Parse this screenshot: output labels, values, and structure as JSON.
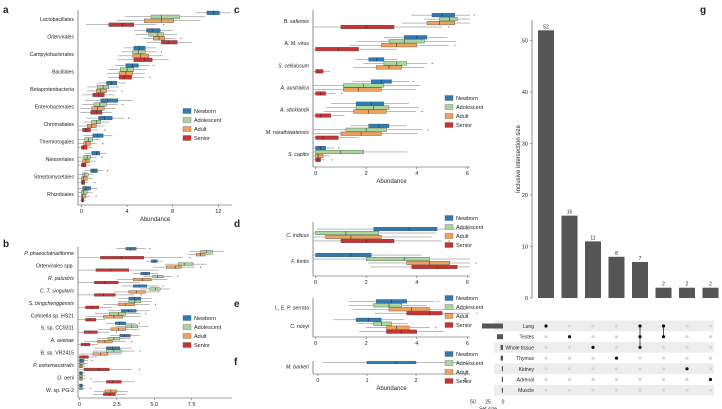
{
  "colors": {
    "Newborn": "#2e7ab3",
    "Adolescent": "#a9d69c",
    "Adult": "#eea25e",
    "Senior": "#c93333",
    "bar": "#555555",
    "dot_off": "#d6d6d6",
    "band": "#ededed"
  },
  "legend": [
    "Newborn",
    "Adolescent",
    "Adult",
    "Senior"
  ],
  "chart_data": [
    {
      "panel": "a",
      "type": "boxplot",
      "xlabel": "Abundance",
      "xlim": [
        -0.3,
        13.2
      ],
      "xticks": [
        0,
        4,
        8,
        12
      ],
      "categories": [
        {
          "name": "Lactobacillales",
          "italic": false,
          "boxes": [
            [
              11,
              11.6,
              12.1
            ],
            [
              6.1,
              7,
              8.6
            ],
            [
              5.5,
              7,
              8.1
            ],
            [
              2.4,
              3.6,
              4.6
            ]
          ]
        },
        {
          "name": "Ortervirales",
          "italic": true,
          "boxes": [
            [
              5.7,
              6.2,
              6.9
            ],
            [
              5.9,
              6.7,
              7.2
            ],
            [
              6.3,
              6.8,
              7.3
            ],
            [
              7,
              7.6,
              8.4
            ]
          ]
        },
        {
          "name": "Campylobacterales",
          "italic": false,
          "boxes": [
            [
              4.6,
              5.1,
              5.6
            ],
            [
              4.5,
              5,
              5.6
            ],
            [
              4.5,
              5.2,
              5.9
            ],
            [
              4.6,
              5.5,
              6.2
            ]
          ]
        },
        {
          "name": "Bacillales",
          "italic": false,
          "boxes": [
            [
              3.9,
              4.5,
              5
            ],
            [
              3.4,
              4,
              4.6
            ],
            [
              3.3,
              3.9,
              4.5
            ],
            [
              3.3,
              3.8,
              4.4
            ]
          ]
        },
        {
          "name": "Betaproteobacteria",
          "italic": false,
          "boxes": [
            [
              2.2,
              2.6,
              3.1
            ],
            [
              1.4,
              1.9,
              2.4
            ],
            [
              1.3,
              1.7,
              2.2
            ],
            [
              1,
              1.5,
              2
            ]
          ]
        },
        {
          "name": "Enterobacterales",
          "italic": false,
          "boxes": [
            [
              1.7,
              2.3,
              3.2
            ],
            [
              1.1,
              1.6,
              2.2
            ],
            [
              0.9,
              1.4,
              2
            ],
            [
              0.8,
              1.3,
              1.8
            ]
          ]
        },
        {
          "name": "Chromatiales",
          "italic": false,
          "boxes": [
            [
              1.5,
              2,
              2.7
            ],
            [
              0.9,
              1.3,
              1.7
            ],
            [
              0.5,
              0.9,
              1.3
            ],
            [
              0.1,
              0.4,
              0.8
            ]
          ]
        },
        {
          "name": "Thermotogales",
          "italic": false,
          "boxes": [
            [
              1,
              1.4,
              1.9
            ],
            [
              0.3,
              0.6,
              1
            ],
            [
              0.2,
              0.4,
              0.8
            ],
            [
              0,
              0.2,
              0.5
            ]
          ]
        },
        {
          "name": "Neisseriales",
          "italic": false,
          "boxes": [
            [
              0.9,
              1.3,
              1.6
            ],
            [
              0.2,
              0.5,
              0.8
            ],
            [
              0.1,
              0.4,
              0.7
            ],
            [
              0,
              0.2,
              0.4
            ]
          ]
        },
        {
          "name": "Streptomycetales",
          "italic": false,
          "boxes": [
            [
              0.8,
              1.1,
              1.4
            ],
            [
              0.1,
              0.3,
              0.6
            ],
            [
              0,
              0.2,
              0.5
            ],
            [
              0,
              0.1,
              0.3
            ]
          ]
        },
        {
          "name": "Rhizobiales",
          "italic": false,
          "boxes": [
            [
              0.1,
              0.4,
              0.8
            ],
            [
              0,
              0.2,
              0.5
            ],
            [
              0,
              0.1,
              0.4
            ],
            [
              0,
              0.1,
              0.2
            ]
          ]
        }
      ]
    },
    {
      "panel": "b",
      "type": "boxplot",
      "xlabel": "Abundance",
      "xlim": [
        -0.1,
        10.2
      ],
      "xticks": [
        0,
        2.5,
        5,
        7.5
      ],
      "xtick_labels": [
        "0",
        "2.5",
        "5.0",
        "7.5"
      ],
      "categories": [
        {
          "name": "P. phaeoclatriatiforme",
          "italic": true,
          "boxes": [
            [
              3.1,
              3.4,
              3.8
            ],
            [
              8.1,
              8.5,
              8.9
            ],
            [
              7.8,
              8.1,
              8.4
            ],
            [
              1.4,
              2.8,
              4.3
            ]
          ]
        },
        {
          "name": "Ortervirales spp.",
          "italic": false,
          "boxes": [
            [
              4.8,
              5,
              5.2
            ],
            [
              6.6,
              7,
              7.6
            ],
            [
              5.8,
              6.4,
              6.8
            ],
            [
              1.1,
              2.1,
              3.3
            ]
          ]
        },
        {
          "name": "R. palustris",
          "italic": true,
          "boxes": [
            [
              4.1,
              4.4,
              4.7
            ],
            [
              4.9,
              5.2,
              5.6
            ],
            [
              3.6,
              4.2,
              4.8
            ],
            [
              1,
              1.7,
              2.6
            ]
          ]
        },
        {
          "name": "C. T. singularis",
          "italic": true,
          "boxes": [
            [
              3.6,
              4,
              4.5
            ],
            [
              4.7,
              5.1,
              5.4
            ],
            [
              3.3,
              3.8,
              4.4
            ],
            [
              1,
              1.6,
              2.4
            ]
          ]
        },
        {
          "name": "S. bingchenggensis",
          "italic": true,
          "boxes": [
            [
              3.3,
              3.7,
              4.1
            ],
            [
              3.3,
              3.7,
              4.1
            ],
            [
              2.6,
              3.1,
              3.7
            ],
            [
              0.4,
              0.8,
              1.3
            ]
          ]
        },
        {
          "name": "Cohnella sp. HS21",
          "italic": false,
          "boxes": [
            [
              2.8,
              3.3,
              3.8
            ],
            [
              2,
              2.6,
              3.1
            ],
            [
              1.6,
              2.3,
              2.9
            ],
            [
              0.4,
              0.7,
              1.1
            ]
          ]
        },
        {
          "name": "S. sp. CC9311",
          "italic": false,
          "boxes": [
            [
              2.4,
              2.7,
              3.1
            ],
            [
              3.1,
              3.5,
              3.9
            ],
            [
              2.1,
              2.6,
              3.1
            ],
            [
              0.3,
              0.7,
              1.2
            ]
          ]
        },
        {
          "name": "A. avenae",
          "italic": true,
          "boxes": [
            [
              2.7,
              3,
              3.4
            ],
            [
              1.9,
              2.3,
              2.7
            ],
            [
              1.2,
              1.7,
              2.2
            ],
            [
              0.1,
              0.4,
              0.7
            ]
          ]
        },
        {
          "name": "B. sp. VR2415",
          "italic": false,
          "boxes": [
            [
              1.8,
              2.2,
              2.7
            ],
            [
              1.8,
              2.3,
              2.8
            ],
            [
              0.9,
              1.4,
              1.9
            ],
            [
              0,
              0.3,
              0.6
            ]
          ]
        },
        {
          "name": "P. extremaustralis",
          "italic": true,
          "boxes": [
            [
              0,
              0.1,
              0.3
            ],
            [
              0,
              0.1,
              0.3
            ],
            [
              0,
              0.1,
              0.2
            ],
            [
              0.3,
              1.3,
              2
            ]
          ]
        },
        {
          "name": "O. oeni",
          "italic": true,
          "boxes": [
            [
              0,
              0.1,
              0.2
            ],
            [
              0,
              0.1,
              0.2
            ],
            [
              0,
              0.1,
              0.2
            ],
            [
              1.8,
              2.2,
              2.8
            ]
          ]
        },
        {
          "name": "W. sp. PG-2",
          "italic": false,
          "boxes": [
            [
              0,
              0.1,
              0.2
            ],
            [
              0,
              0.1,
              0.2
            ],
            [
              1.7,
              2.1,
              2.5
            ],
            [
              1.6,
              2,
              2.4
            ]
          ]
        }
      ]
    },
    {
      "panel": "c",
      "type": "boxplot",
      "xlabel": "Abundance",
      "xlim": [
        -0.1,
        6.1
      ],
      "xticks": [
        0,
        2,
        4,
        6
      ],
      "categories": [
        {
          "name": "B. safensis",
          "italic": true,
          "boxes": [
            [
              4.6,
              5,
              5.5
            ],
            [
              4.9,
              5.3,
              5.6
            ],
            [
              4.4,
              4.9,
              5.5
            ],
            [
              1,
              2,
              3.1
            ]
          ]
        },
        {
          "name": "A. M. virus",
          "italic": false,
          "boxes": [
            [
              3.5,
              4,
              4.4
            ],
            [
              2.9,
              3.5,
              4.3
            ],
            [
              2.6,
              3.2,
              4
            ],
            [
              0,
              0.9,
              1.7
            ]
          ]
        },
        {
          "name": "S. cellulosum",
          "italic": true,
          "boxes": [
            [
              2.1,
              2.4,
              2.7
            ],
            [
              2.7,
              3.2,
              3.6
            ],
            [
              2.4,
              2.9,
              3.4
            ],
            [
              0,
              0.1,
              0.3
            ]
          ]
        },
        {
          "name": "A. australica",
          "italic": true,
          "boxes": [
            [
              2.2,
              2.6,
              3
            ],
            [
              1.1,
              1.9,
              2.7
            ],
            [
              1.1,
              1.7,
              2.6
            ],
            [
              0,
              0.2,
              0.4
            ]
          ]
        },
        {
          "name": "A. sticklandii",
          "italic": true,
          "boxes": [
            [
              1.6,
              2.2,
              2.7
            ],
            [
              1.6,
              2.3,
              2.9
            ],
            [
              1.5,
              2.1,
              2.8
            ],
            [
              0,
              0.2,
              0.6
            ]
          ]
        },
        {
          "name": "M. narathiwatensis",
          "italic": true,
          "boxes": [
            [
              2.1,
              2.5,
              2.9
            ],
            [
              1.2,
              2,
              2.8
            ],
            [
              1,
              1.8,
              2.6
            ],
            [
              0,
              0.3,
              0.9
            ]
          ]
        },
        {
          "name": "S. capitis",
          "italic": true,
          "boxes": [
            [
              0,
              0.2,
              0.4
            ],
            [
              0,
              1,
              1.9
            ],
            [
              0,
              0.1,
              0.3
            ],
            [
              0,
              0.1,
              0.2
            ]
          ]
        }
      ]
    },
    {
      "panel": "d",
      "type": "boxplot",
      "xlabel": "",
      "xlim": [
        -0.1,
        6.1
      ],
      "xticks": [
        0,
        2,
        4,
        6
      ],
      "categories": [
        {
          "name": "C. indicus",
          "italic": true,
          "boxes": [
            [
              2.3,
              3.7,
              4.8
            ],
            [
              0,
              1.2,
              2.5
            ],
            [
              0.4,
              1.4,
              2.6
            ],
            [
              1,
              2,
              3.1
            ]
          ]
        },
        {
          "name": "F. fontis",
          "italic": true,
          "boxes": [
            [
              0,
              1.4,
              2.2
            ],
            [
              2,
              3.5,
              4.5
            ],
            [
              3.6,
              4.5,
              5.3
            ],
            [
              3.8,
              4.8,
              5.6
            ]
          ]
        }
      ]
    },
    {
      "panel": "e",
      "type": "boxplot",
      "xlabel": "",
      "xlim": [
        -0.1,
        6.1
      ],
      "xticks": [
        0,
        2,
        4,
        6
      ],
      "categories": [
        {
          "name": "L. E. P. serrata",
          "italic": false,
          "boxes": [
            [
              2.4,
              3,
              3.6
            ],
            [
              2.3,
              2.9,
              3.4
            ],
            [
              2.9,
              3.8,
              4.5
            ],
            [
              3.6,
              4.5,
              5
            ]
          ]
        },
        {
          "name": "C. novyi",
          "italic": true,
          "boxes": [
            [
              1.6,
              2.1,
              2.6
            ],
            [
              2.3,
              2.6,
              3
            ],
            [
              2.8,
              3.2,
              3.7
            ],
            [
              2.8,
              3.4,
              4
            ]
          ]
        }
      ]
    },
    {
      "panel": "f",
      "type": "boxplot",
      "xlabel": "Abundance",
      "xlim": [
        -0.1,
        3.1
      ],
      "xticks": [
        0,
        1,
        2,
        3
      ],
      "categories": [
        {
          "name": "M. barkeri",
          "italic": true,
          "boxes": [
            [
              1,
              1.6,
              2
            ],
            [
              0,
              0,
              0
            ],
            [
              0,
              0,
              0
            ],
            [
              0,
              0,
              0
            ]
          ]
        }
      ]
    },
    {
      "panel": "g",
      "type": "upset",
      "ylabel": "Inclusive intersection size",
      "ylim": [
        0,
        54
      ],
      "yticks": [
        0,
        10,
        20,
        30,
        40,
        50
      ],
      "sets": [
        "Lung",
        "Testes",
        "Whole tissue",
        "Thymus",
        "Kidney",
        "Adrenal",
        "Muscle"
      ],
      "set_sizes": [
        35,
        10,
        4,
        4,
        2,
        2,
        2
      ],
      "set_size_ticks": [
        50,
        25,
        0
      ],
      "set_size_label": "Set size",
      "intersection_sizes": [
        52,
        16,
        11,
        8,
        7,
        2,
        2,
        2,
        1
      ],
      "intersections": [
        [
          0
        ],
        [
          1
        ],
        [
          2
        ],
        [
          3
        ],
        [
          0,
          1,
          2
        ],
        [
          0,
          1
        ],
        [
          4
        ],
        [
          5
        ],
        [
          6
        ]
      ]
    }
  ]
}
